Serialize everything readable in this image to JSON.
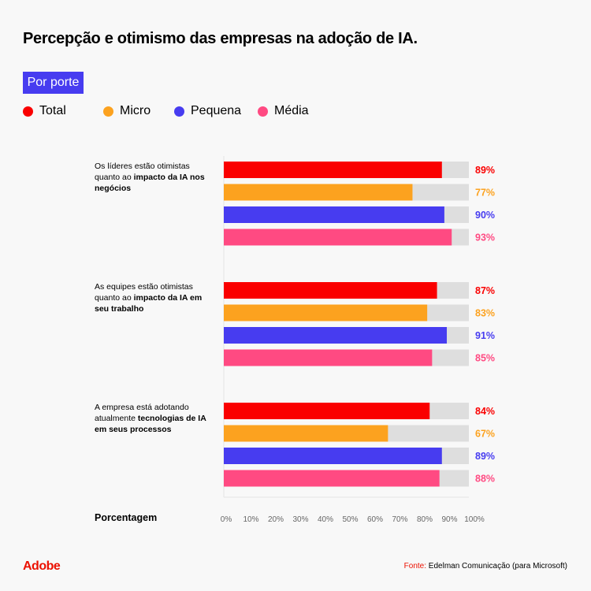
{
  "title": "Percepção e otimismo das empresas na adoção de IA.",
  "badge": "Por porte",
  "chart_data": {
    "type": "bar",
    "orientation": "horizontal",
    "xlabel": "Porcentagem",
    "xlim": [
      0,
      100
    ],
    "ticks": [
      "0%",
      "10%",
      "20%",
      "30%",
      "40%",
      "50%",
      "60%",
      "70%",
      "80%",
      "90%",
      "100%"
    ],
    "legend_position": "top-left",
    "categories": [
      {
        "pre": "Os líderes estão otimistas quanto ao ",
        "bold": "impacto da IA nos negócios"
      },
      {
        "pre": "As equipes estão otimistas quanto ao ",
        "bold": "impacto da IA em seu trabalho"
      },
      {
        "pre": "A empresa está adotando atualmente ",
        "bold": "tecnologias de IA em seus processos"
      }
    ],
    "series": [
      {
        "name": "Total",
        "color": "#fa0000",
        "values": [
          89,
          87,
          84
        ]
      },
      {
        "name": "Micro",
        "color": "#fca21f",
        "values": [
          77,
          83,
          67
        ]
      },
      {
        "name": "Pequena",
        "color": "#473cf0",
        "values": [
          90,
          91,
          89
        ]
      },
      {
        "name": "Média",
        "color": "#ff4a82",
        "values": [
          93,
          85,
          88
        ]
      }
    ],
    "track_color": "#dedede",
    "value_suffix": "%"
  },
  "footer": {
    "logo": "Adobe",
    "source_label": "Fonte:",
    "source_text": " Edelman Comunicação (para Microsoft)"
  }
}
